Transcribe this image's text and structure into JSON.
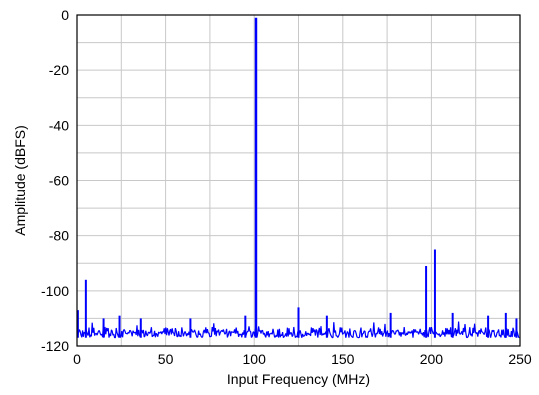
{
  "chart_data": {
    "type": "line",
    "title": "",
    "xlabel": "Input Frequency (MHz)",
    "ylabel": "Amplitude (dBFS)",
    "xlim": [
      0,
      250
    ],
    "ylim": [
      -120,
      0
    ],
    "x_ticks": [
      0,
      50,
      100,
      150,
      200,
      250
    ],
    "y_ticks": [
      0,
      -20,
      -40,
      -60,
      -80,
      -100,
      -120
    ],
    "x_tick_labels": [
      "0",
      "50",
      "100",
      "150",
      "200",
      "250"
    ],
    "y_tick_labels": [
      "0",
      "-20",
      "-40",
      "-60",
      "-80",
      "-100",
      "-120"
    ],
    "grid": true,
    "minor_grid": true,
    "legend": "none",
    "series_color": "#0000ff",
    "noise_floor_dbfs": [
      -117,
      -111
    ],
    "spurs": [
      {
        "x": 0.5,
        "y": -107
      },
      {
        "x": 5,
        "y": -96
      },
      {
        "x": 15,
        "y": -110
      },
      {
        "x": 24,
        "y": -109
      },
      {
        "x": 36,
        "y": -110
      },
      {
        "x": 64,
        "y": -110
      },
      {
        "x": 95,
        "y": -109
      },
      {
        "x": 101,
        "y": -1
      },
      {
        "x": 125,
        "y": -106
      },
      {
        "x": 141,
        "y": -109
      },
      {
        "x": 177,
        "y": -108
      },
      {
        "x": 197,
        "y": -91
      },
      {
        "x": 202,
        "y": -85
      },
      {
        "x": 212,
        "y": -108
      },
      {
        "x": 232,
        "y": -109
      },
      {
        "x": 242,
        "y": -108
      },
      {
        "x": 248,
        "y": -110
      }
    ]
  }
}
